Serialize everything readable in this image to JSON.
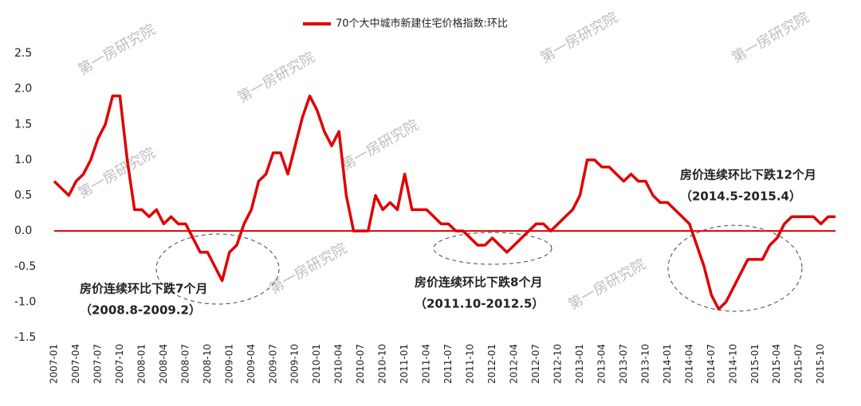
{
  "chart_data": {
    "type": "line",
    "series": [
      {
        "name": "70个大中城市新建住宅价格指数:环比",
        "color": "#e00000",
        "values": [
          0.7,
          0.6,
          0.5,
          0.7,
          0.8,
          1.0,
          1.3,
          1.5,
          1.9,
          1.9,
          1.0,
          0.3,
          0.3,
          0.2,
          0.3,
          0.1,
          0.2,
          0.1,
          0.1,
          -0.1,
          -0.3,
          -0.3,
          -0.5,
          -0.7,
          -0.3,
          -0.2,
          0.1,
          0.3,
          0.7,
          0.8,
          1.1,
          1.1,
          0.8,
          1.2,
          1.6,
          1.9,
          1.7,
          1.4,
          1.2,
          1.4,
          0.5,
          0.0,
          0.0,
          0.0,
          0.5,
          0.3,
          0.4,
          0.3,
          0.8,
          0.3,
          0.3,
          0.3,
          0.2,
          0.1,
          0.1,
          0.0,
          0.0,
          -0.1,
          -0.2,
          -0.2,
          -0.1,
          -0.2,
          -0.3,
          -0.2,
          -0.1,
          0.0,
          0.1,
          0.1,
          0.0,
          0.1,
          0.2,
          0.3,
          0.5,
          1.0,
          1.0,
          0.9,
          0.9,
          0.8,
          0.7,
          0.8,
          0.7,
          0.7,
          0.5,
          0.4,
          0.4,
          0.3,
          0.2,
          0.1,
          -0.2,
          -0.5,
          -0.9,
          -1.1,
          -1.0,
          -0.8,
          -0.6,
          -0.4,
          -0.4,
          -0.4,
          -0.2,
          -0.1,
          0.1,
          0.2,
          0.2,
          0.2,
          0.2,
          0.1,
          0.2,
          0.2
        ]
      }
    ],
    "categories": [
      "2007-01",
      null,
      null,
      "2007-04",
      null,
      null,
      "2007-07",
      null,
      null,
      "2007-10",
      null,
      null,
      "2008-01",
      null,
      null,
      "2008-04",
      null,
      null,
      "2008-07",
      null,
      null,
      "2008-10",
      null,
      null,
      "2009-01",
      null,
      null,
      "2009-04",
      null,
      null,
      "2009-07",
      null,
      null,
      "2009-10",
      null,
      null,
      "2010-01",
      null,
      null,
      "2010-04",
      null,
      null,
      "2010-07",
      null,
      null,
      "2010-10",
      null,
      null,
      "2011-01",
      null,
      null,
      "2011-04",
      null,
      null,
      "2011-07",
      null,
      null,
      "2011-10",
      null,
      null,
      "2012-01",
      null,
      null,
      "2012-04",
      null,
      null,
      "2012-07",
      null,
      null,
      "2012-10",
      null,
      null,
      "2013-01",
      null,
      null,
      "2013-04",
      null,
      null,
      "2013-07",
      null,
      null,
      "2013-10",
      null,
      null,
      "2014-01",
      null,
      null,
      "2014-04",
      null,
      null,
      "2014-07",
      null,
      null,
      "2014-10",
      null,
      null,
      "2015-01",
      null,
      null,
      "2015-04",
      null,
      null,
      "2015-07",
      null,
      null,
      "2015-10",
      null,
      null
    ],
    "ylim": [
      -1.5,
      2.5
    ],
    "yticks": [
      2.5,
      {
        "value": 2,
        "label": "2.0"
      },
      1.5,
      {
        "value": 1,
        "label": "1.0"
      },
      0.5,
      {
        "value": 0,
        "label": "0.0"
      },
      -0.5,
      {
        "value": -1,
        "label": "-1.0"
      },
      -1.5
    ],
    "zero_line": true,
    "annotations": [
      "房价连续环比下跌7个月",
      "（2008.8-2009.2）",
      "房价连续环比下跌8个月",
      "（2011.10-2012.5）",
      "房价连续环比下跌12个月",
      "（2014.5-2015.4）"
    ],
    "watermark": "第一房研究院"
  }
}
